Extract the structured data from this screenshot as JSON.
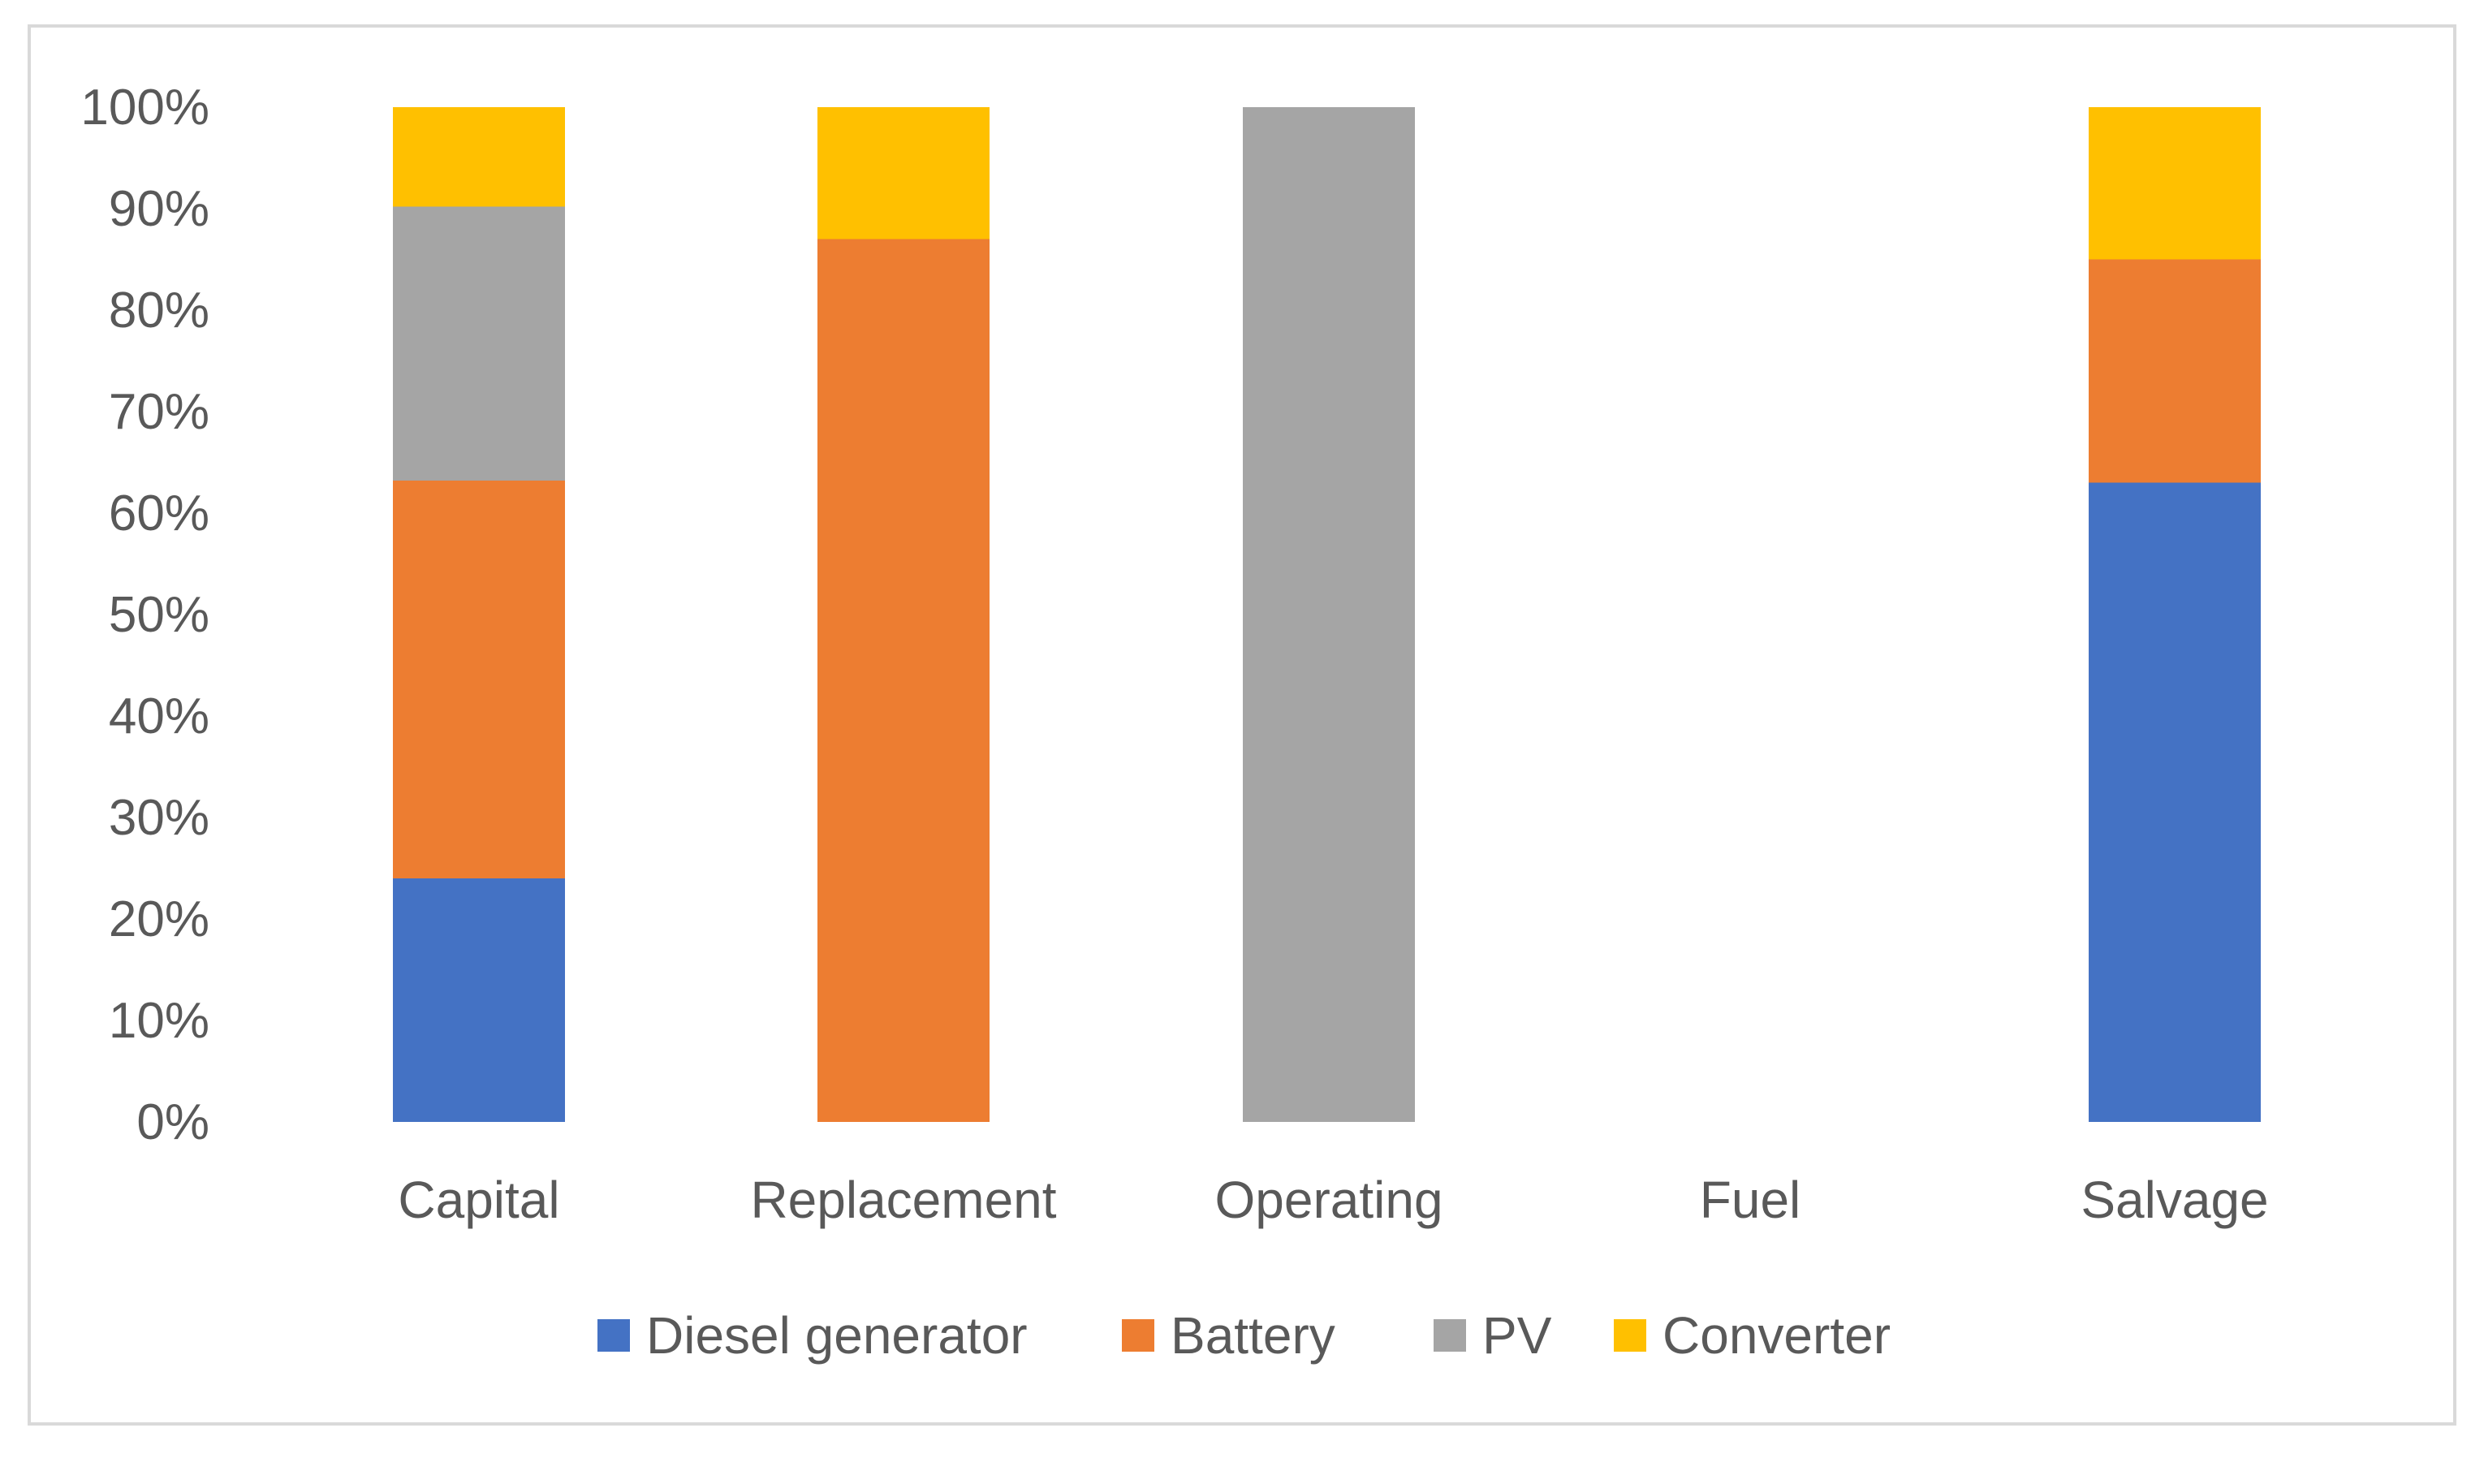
{
  "chart_data": {
    "type": "bar",
    "stacked": true,
    "percent": true,
    "title": "",
    "xlabel": "",
    "ylabel": "",
    "ylim": [
      0,
      100
    ],
    "yticks": [
      "0%",
      "10%",
      "20%",
      "30%",
      "40%",
      "50%",
      "60%",
      "70%",
      "80%",
      "90%",
      "100%"
    ],
    "categories": [
      "Capital",
      "Replacement",
      "Operating",
      "Fuel",
      "Salvage"
    ],
    "series": [
      {
        "name": "Diesel generator",
        "color": "#4472C4",
        "values": [
          24,
          0,
          0,
          0,
          63
        ]
      },
      {
        "name": "Battery",
        "color": "#ED7D31",
        "values": [
          39.2,
          87,
          0,
          0,
          22
        ]
      },
      {
        "name": "PV",
        "color": "#A5A5A5",
        "values": [
          27,
          0,
          100,
          0,
          0
        ]
      },
      {
        "name": "Converter",
        "color": "#FFC000",
        "values": [
          9.8,
          13,
          0,
          0,
          15
        ]
      }
    ],
    "legend_position": "bottom",
    "grid": false
  }
}
